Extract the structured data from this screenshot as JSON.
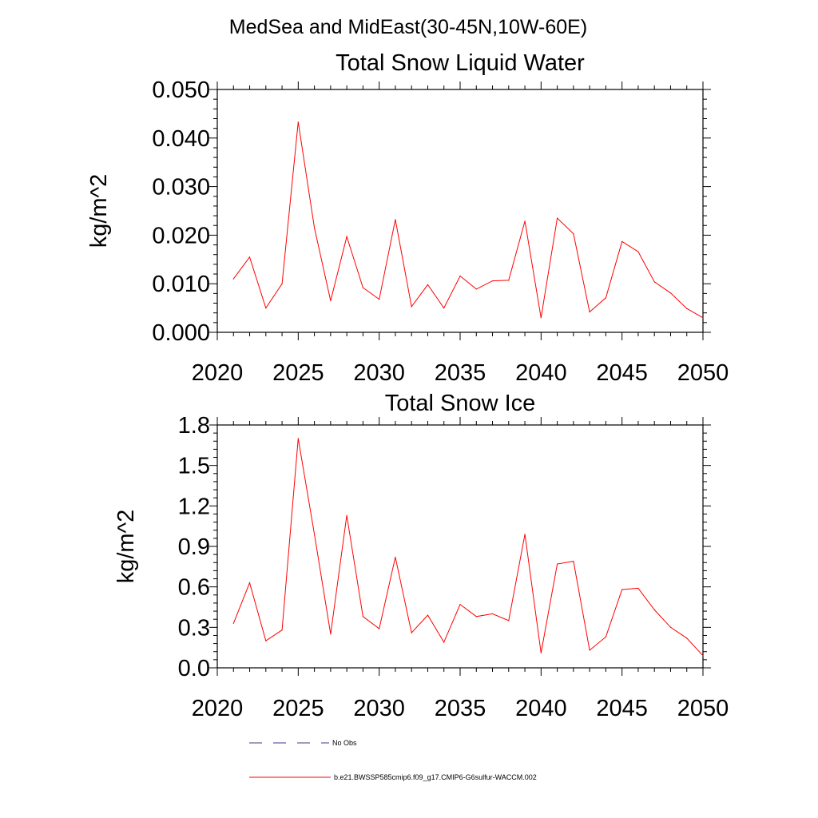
{
  "suptitle": "MedSea and MidEast(30-45N,10W-60E)",
  "chart_data": [
    {
      "type": "line",
      "title": "Total Snow Liquid Water",
      "xlabel": "",
      "ylabel": "kg/m^2",
      "xlim": [
        2020,
        2050
      ],
      "ylim": [
        0.0,
        0.05
      ],
      "xticks": [
        2020,
        2025,
        2030,
        2035,
        2040,
        2045,
        2050
      ],
      "xtick_labels": [
        "2020",
        "2025",
        "2030",
        "2035",
        "2040",
        "2045",
        "2050"
      ],
      "yticks": [
        0.0,
        0.01,
        0.02,
        0.03,
        0.04,
        0.05
      ],
      "ytick_labels": [
        "0.000",
        "0.010",
        "0.020",
        "0.030",
        "0.040",
        "0.050"
      ],
      "y_minor_step": 0.002,
      "grid": false,
      "x": [
        2021,
        2022,
        2023,
        2024,
        2025,
        2026,
        2027,
        2028,
        2029,
        2030,
        2031,
        2032,
        2033,
        2034,
        2035,
        2036,
        2037,
        2038,
        2039,
        2040,
        2041,
        2042,
        2043,
        2044,
        2045,
        2046,
        2047,
        2048,
        2049,
        2050
      ],
      "series": [
        {
          "name": "b.e21.BWSSP585cmip6.f09_g17.CMIP6-G6sulfur-WACCM.002",
          "color": "#ff0000",
          "values": [
            0.011,
            0.0155,
            0.005,
            0.01,
            0.0433,
            0.0215,
            0.0065,
            0.0197,
            0.0092,
            0.0068,
            0.0232,
            0.0053,
            0.0098,
            0.005,
            0.0116,
            0.0089,
            0.0106,
            0.0107,
            0.0229,
            0.003,
            0.0235,
            0.0203,
            0.0042,
            0.0071,
            0.0187,
            0.0166,
            0.0104,
            0.0081,
            0.0049,
            0.003
          ]
        }
      ]
    },
    {
      "type": "line",
      "title": "Total Snow Ice",
      "xlabel": "",
      "ylabel": "kg/m^2",
      "xlim": [
        2020,
        2050
      ],
      "ylim": [
        0.0,
        1.8
      ],
      "xticks": [
        2020,
        2025,
        2030,
        2035,
        2040,
        2045,
        2050
      ],
      "xtick_labels": [
        "2020",
        "2025",
        "2030",
        "2035",
        "2040",
        "2045",
        "2050"
      ],
      "yticks": [
        0.0,
        0.3,
        0.6,
        0.9,
        1.2,
        1.5,
        1.8
      ],
      "ytick_labels": [
        "0.0",
        "0.3",
        "0.6",
        "0.9",
        "1.2",
        "1.5",
        "1.8"
      ],
      "y_minor_step": 0.06,
      "grid": false,
      "x": [
        2021,
        2022,
        2023,
        2024,
        2025,
        2026,
        2027,
        2028,
        2029,
        2030,
        2031,
        2032,
        2033,
        2034,
        2035,
        2036,
        2037,
        2038,
        2039,
        2040,
        2041,
        2042,
        2043,
        2044,
        2045,
        2046,
        2047,
        2048,
        2049,
        2050
      ],
      "series": [
        {
          "name": "b.e21.BWSSP585cmip6.f09_g17.CMIP6-G6sulfur-WACCM.002",
          "color": "#ff0000",
          "values": [
            0.33,
            0.63,
            0.2,
            0.28,
            1.7,
            0.99,
            0.25,
            1.13,
            0.38,
            0.29,
            0.82,
            0.26,
            0.39,
            0.19,
            0.47,
            0.38,
            0.4,
            0.35,
            0.99,
            0.11,
            0.77,
            0.79,
            0.13,
            0.23,
            0.58,
            0.59,
            0.43,
            0.3,
            0.22,
            0.09
          ]
        }
      ]
    }
  ],
  "legend": [
    {
      "label": "No Obs",
      "color": "#3a3a8c",
      "style": "dashed"
    },
    {
      "label": "b.e21.BWSSP585cmip6.f09_g17.CMIP6-G6sulfur-WACCM.002",
      "color": "#ff0000",
      "style": "solid"
    }
  ]
}
